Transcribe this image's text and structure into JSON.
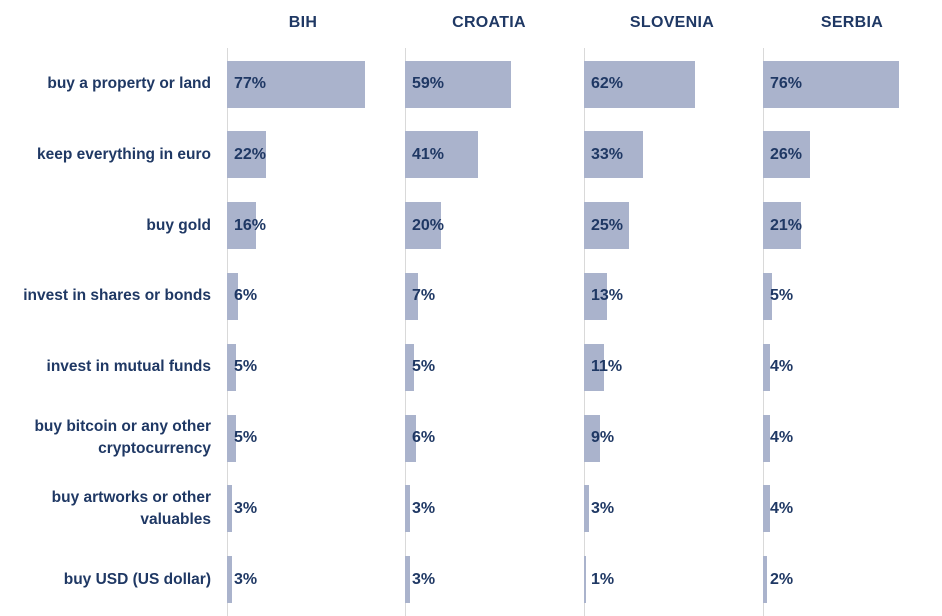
{
  "chart_data": {
    "type": "bar",
    "orientation": "horizontal",
    "panels": [
      "BIH",
      "CROATIA",
      "SLOVENIA",
      "SERBIA"
    ],
    "categories": [
      "buy a property or land",
      "keep everything in euro",
      "buy gold",
      "invest in shares or bonds",
      "invest in mutual funds",
      "buy bitcoin or any other\ncryptocurrency",
      "buy artworks or other\nvaluables",
      "buy USD (US dollar)"
    ],
    "series": [
      {
        "name": "BIH",
        "values": [
          77,
          22,
          16,
          6,
          5,
          5,
          3,
          3
        ]
      },
      {
        "name": "CROATIA",
        "values": [
          59,
          41,
          20,
          7,
          5,
          6,
          3,
          3
        ]
      },
      {
        "name": "SLOVENIA",
        "values": [
          62,
          33,
          25,
          13,
          11,
          9,
          3,
          1
        ]
      },
      {
        "name": "SERBIA",
        "values": [
          76,
          26,
          21,
          5,
          4,
          4,
          4,
          2
        ]
      }
    ],
    "value_suffix": "%",
    "xlim": [
      0,
      100
    ],
    "grid": false,
    "bar_color": "#aab3cc",
    "text_color": "#1f3864"
  }
}
